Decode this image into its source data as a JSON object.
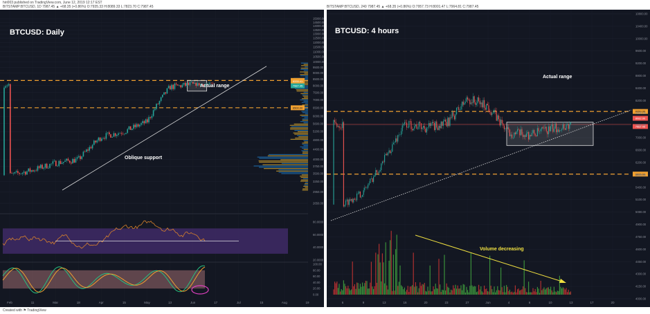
{
  "header": {
    "publisher": "hiri003 published on TradingView.com, June 12, 2019 12:17 EST",
    "symbol_line_left": "BITSTAMP:BTCUSD, 1D 7987.45 ▲ +68.35 (+0.86%) O:7935.33 H:8089.33 L:7823.70 C:7987.45",
    "symbol_line_right": "BITSTAMP:BTCUSD, 240 7987.45 ▲ +68.35 (+0.86%) O:7957.73 H:8001.47 L:7964.81 C:7987.45"
  },
  "footer": {
    "credit": "Created with ⚑ TradingView"
  },
  "colors": {
    "background": "#131722",
    "bull": "#26a69a",
    "bear": "#ef5350",
    "level": "#f0a030",
    "volume_up": "#3a8f3a",
    "volume_down": "#b03030",
    "rsi_band": "#4a2e6e",
    "arrow": "#f0e040",
    "circle": "#e040c0"
  },
  "chart_data": [
    {
      "type": "candlestick",
      "title": "BTCUSD: Daily",
      "annotations": [
        "Actual range",
        "Oblique support"
      ],
      "x_tick_labels": [
        "Feb",
        "11",
        "Mar",
        "18",
        "Apr",
        "15",
        "May",
        "13",
        "Jun",
        "17",
        "Jul",
        "15",
        "Aug",
        "19"
      ],
      "y_tick_labels": [
        "15000.00",
        "14500.00",
        "14000.00",
        "13500.00",
        "13000.00",
        "12500.00",
        "12000.00",
        "11500.00",
        "11000.00",
        "10500.00",
        "10000.00",
        "9500.00",
        "9000.00",
        "8500.00",
        "8000.00",
        "7500.00",
        "7000.00",
        "6500.00",
        "6000.00",
        "5600.00",
        "5200.00",
        "4800.00",
        "4400.00",
        "4000.00",
        "3750.00",
        "3500.00",
        "3250.00",
        "2950.00",
        "2650.00"
      ],
      "ylim": [
        2650,
        15300
      ],
      "levels": [
        8400,
        6500
      ],
      "level_labels": [
        "8400.00",
        "6500.00"
      ],
      "price_badges": [
        "8335.41",
        "7987.45"
      ],
      "range_box": [
        7600,
        8400
      ],
      "price_path": [
        {
          "x": "Feb",
          "y": 3450
        },
        {
          "x": "11",
          "y": 3620
        },
        {
          "x": "Mar",
          "y": 3870
        },
        {
          "x": "18",
          "y": 4000
        },
        {
          "x": "Apr",
          "y": 4950
        },
        {
          "x": "15",
          "y": 5200
        },
        {
          "x": "May",
          "y": 5700
        },
        {
          "x": "13",
          "y": 7900
        },
        {
          "x": "Jun",
          "y": 8100
        }
      ],
      "rsi": {
        "y_tick_labels": [
          "80.0000",
          "60.0000",
          "40.0000",
          "20.0000"
        ],
        "ylim": [
          20,
          90
        ],
        "band": [
          30,
          70
        ],
        "current_label": "56.2000"
      },
      "stoch": {
        "y_tick_labels": [
          "100.00",
          "80.00",
          "60.00",
          "40.00",
          "20.00",
          "0.00"
        ],
        "ylim": [
          0,
          100
        ],
        "band": [
          20,
          80
        ]
      }
    },
    {
      "type": "candlestick",
      "title": "BTCUSD: 4 hours",
      "annotations": [
        "Actual range",
        "Volume decreasing"
      ],
      "x_tick_labels": [
        "6",
        "9",
        "13",
        "16",
        "20",
        "23",
        "27",
        "Jun",
        "4",
        "6",
        "10",
        "13",
        "17",
        "20"
      ],
      "y_tick_labels": [
        "10800.00",
        "10400.00",
        "10000.00",
        "9600.00",
        "9200.00",
        "8800.00",
        "8400.00",
        "8200.00",
        "7800.00",
        "7400.00",
        "7000.00",
        "6600.00",
        "6200.00",
        "5800.00",
        "5400.00",
        "5100.00",
        "5080.00",
        "4900.00",
        "4750.00",
        "4600.00",
        "4450.00",
        "4300.00",
        "4150.00",
        "4000.00"
      ],
      "ylim": [
        5300,
        11000
      ],
      "levels": [
        8350,
        6600
      ],
      "level_labels": [
        "8350.00",
        "6600.00"
      ],
      "price_badges": [
        "8082.00",
        "7987.45"
      ],
      "range_box": [
        7400,
        8000
      ],
      "price_path": [
        {
          "x": "6",
          "y": 5750
        },
        {
          "x": "9",
          "y": 6100
        },
        {
          "x": "13",
          "y": 7000
        },
        {
          "x": "16",
          "y": 8000
        },
        {
          "x": "20",
          "y": 7900
        },
        {
          "x": "23",
          "y": 8000
        },
        {
          "x": "27",
          "y": 8700
        },
        {
          "x": "Jun",
          "y": 8500
        },
        {
          "x": "4",
          "y": 7750
        },
        {
          "x": "6",
          "y": 7700
        },
        {
          "x": "10",
          "y": 7850
        },
        {
          "x": "13",
          "y": 7990
        }
      ]
    }
  ]
}
